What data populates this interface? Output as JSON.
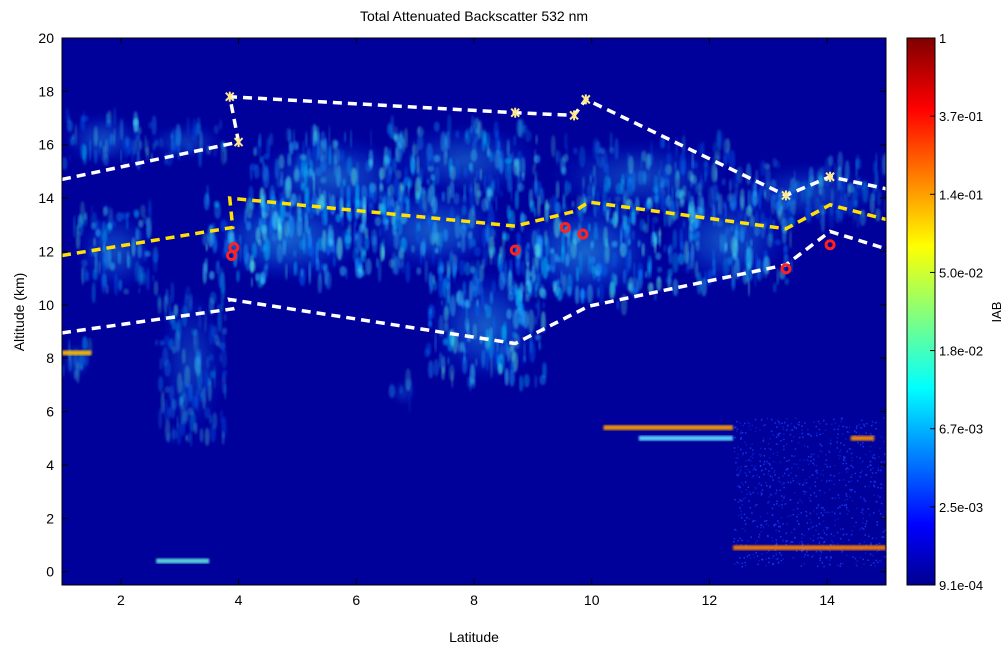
{
  "chart_data": {
    "type": "heatmap",
    "title": "Total Attenuated Backscatter 532 nm",
    "xlabel": "Latitude",
    "ylabel": "Altitude (km)",
    "xlim": [
      1,
      15
    ],
    "ylim": [
      -0.5,
      20
    ],
    "x_ticks": [
      "2",
      "4",
      "6",
      "8",
      "10",
      "12",
      "14"
    ],
    "y_ticks": [
      "0",
      "2",
      "4",
      "6",
      "8",
      "10",
      "12",
      "14",
      "16",
      "18",
      "20"
    ],
    "colorbar": {
      "label": "IAB",
      "scale": "log",
      "ticks": [
        "1",
        "3.7e-01",
        "1.4e-01",
        "5.0e-02",
        "1.8e-02",
        "6.7e-03",
        "2.5e-03",
        "9.1e-04"
      ],
      "colors": [
        "#800000",
        "#ff0000",
        "#ff8000",
        "#ffff00",
        "#80ff80",
        "#00ffff",
        "#0080ff",
        "#0000ff",
        "#00008f"
      ]
    },
    "background_color": "#00009a",
    "cloud_regions": [
      {
        "x": [
          1.0,
          2.4
        ],
        "y": [
          15.2,
          17.2
        ],
        "intensity": 0.45
      },
      {
        "x": [
          2.4,
          3.8
        ],
        "y": [
          15.4,
          16.8
        ],
        "intensity": 0.35
      },
      {
        "x": [
          4.2,
          7.0
        ],
        "y": [
          13.2,
          16.4
        ],
        "intensity": 0.5
      },
      {
        "x": [
          6.5,
          9.2
        ],
        "y": [
          14.0,
          16.8
        ],
        "intensity": 0.45
      },
      {
        "x": [
          9.2,
          12.4
        ],
        "y": [
          13.4,
          16.2
        ],
        "intensity": 0.4
      },
      {
        "x": [
          12.4,
          15.0
        ],
        "y": [
          13.0,
          15.4
        ],
        "intensity": 0.35
      },
      {
        "x": [
          1.2,
          2.6
        ],
        "y": [
          10.4,
          13.6
        ],
        "intensity": 0.45
      },
      {
        "x": [
          3.4,
          6.2
        ],
        "y": [
          10.8,
          14.2
        ],
        "intensity": 0.6
      },
      {
        "x": [
          6.0,
          8.6
        ],
        "y": [
          11.2,
          14.4
        ],
        "intensity": 0.55
      },
      {
        "x": [
          8.6,
          11.2
        ],
        "y": [
          10.0,
          14.0
        ],
        "intensity": 0.6
      },
      {
        "x": [
          11.2,
          13.4
        ],
        "y": [
          10.6,
          14.2
        ],
        "intensity": 0.5
      },
      {
        "x": [
          7.2,
          9.2
        ],
        "y": [
          7.0,
          11.4
        ],
        "intensity": 0.55
      },
      {
        "x": [
          2.6,
          3.8
        ],
        "y": [
          5.0,
          10.6
        ],
        "intensity": 0.35
      },
      {
        "x": [
          1.0,
          1.5
        ],
        "y": [
          7.2,
          8.6
        ],
        "intensity": 0.4
      },
      {
        "x": [
          6.6,
          7.0
        ],
        "y": [
          6.2,
          7.2
        ],
        "intensity": 0.3
      }
    ],
    "aerosol_layers": [
      {
        "x": [
          1.0,
          1.5
        ],
        "y": 8.2,
        "color": "#ffc000"
      },
      {
        "x": [
          10.2,
          12.4
        ],
        "y": 5.4,
        "color": "#ffa000"
      },
      {
        "x": [
          10.8,
          12.4
        ],
        "y": 5.0,
        "color": "#60e0ff"
      },
      {
        "x": [
          14.4,
          14.8
        ],
        "y": 5.0,
        "color": "#ff9000"
      },
      {
        "x": [
          12.4,
          15.0
        ],
        "y": 0.9,
        "color": "#ff8000"
      },
      {
        "x": [
          2.6,
          3.5
        ],
        "y": 0.4,
        "color": "#60e0e0"
      }
    ],
    "noise_region": {
      "x": [
        12.4,
        15.0
      ],
      "y": [
        0.2,
        5.8
      ]
    },
    "white_upper_line": {
      "x": [
        1.0,
        4.0,
        3.85,
        3.85,
        8.7,
        9.7,
        9.9,
        13.3,
        14.05,
        15.0
      ],
      "y": [
        14.7,
        16.1,
        17.8,
        17.8,
        17.2,
        17.1,
        17.7,
        14.1,
        14.8,
        14.35
      ]
    },
    "yellow_line": {
      "x": [
        1.0,
        3.9,
        3.85,
        8.7,
        9.7,
        9.95,
        13.3,
        14.05,
        15.0
      ],
      "y": [
        11.85,
        12.9,
        14.0,
        12.95,
        13.5,
        13.85,
        12.85,
        13.75,
        13.2
      ]
    },
    "white_lower_line": {
      "x": [
        1.0,
        3.9,
        3.85,
        8.7,
        9.95,
        13.3,
        14.05,
        15.0
      ],
      "y": [
        8.95,
        9.85,
        10.2,
        8.55,
        9.95,
        11.5,
        12.75,
        12.1
      ]
    },
    "star_markers": [
      {
        "x": 3.85,
        "y": 17.8
      },
      {
        "x": 4.0,
        "y": 16.1
      },
      {
        "x": 8.7,
        "y": 17.2
      },
      {
        "x": 9.7,
        "y": 17.1
      },
      {
        "x": 9.9,
        "y": 17.7
      },
      {
        "x": 13.3,
        "y": 14.1
      },
      {
        "x": 14.05,
        "y": 14.8
      }
    ],
    "red_markers": [
      {
        "x": 3.92,
        "y": 12.15
      },
      {
        "x": 3.88,
        "y": 11.85
      },
      {
        "x": 8.7,
        "y": 12.05
      },
      {
        "x": 9.55,
        "y": 12.9
      },
      {
        "x": 9.85,
        "y": 12.65
      },
      {
        "x": 13.3,
        "y": 11.35
      },
      {
        "x": 14.05,
        "y": 12.25
      }
    ]
  }
}
